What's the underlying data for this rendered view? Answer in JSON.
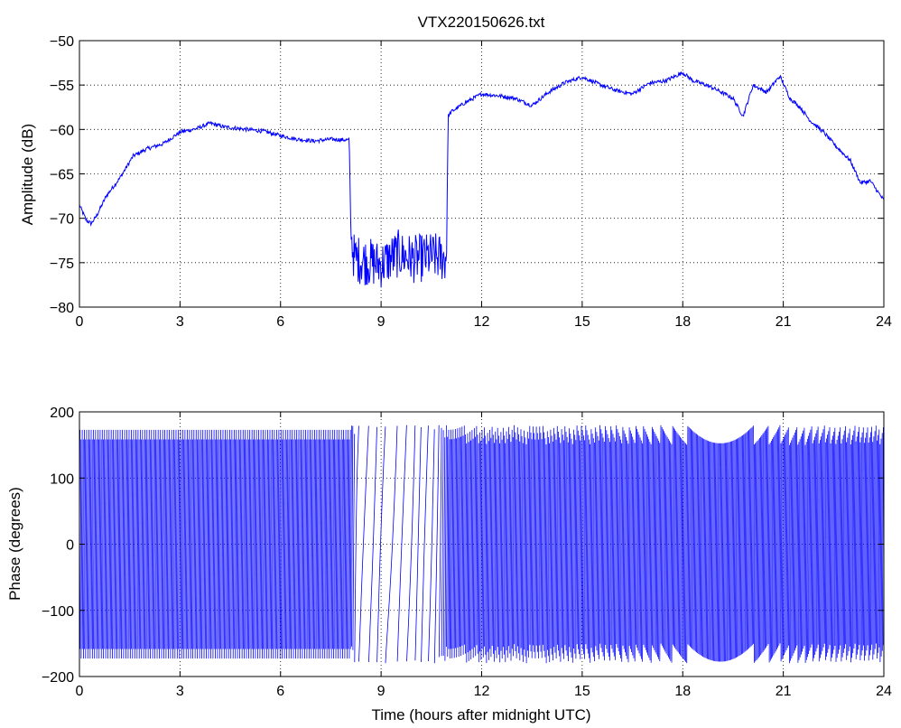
{
  "chart_data": [
    {
      "type": "line",
      "title": "VTX220150626.txt",
      "xlabel": "",
      "ylabel": "Amplitude (dB)",
      "xlim": [
        0,
        24
      ],
      "ylim": [
        -80,
        -50
      ],
      "xticks": [
        "0",
        "3",
        "6",
        "9",
        "12",
        "15",
        "18",
        "21",
        "24"
      ],
      "yticks": [
        "−50",
        "−55",
        "−60",
        "−65",
        "−70",
        "−75",
        "−80"
      ],
      "grid": true,
      "line_color": "#0000ff",
      "series": [
        {
          "x": [
            0,
            0.2,
            0.35,
            0.5,
            0.8,
            1.2,
            1.6,
            2.0,
            2.5,
            3.0,
            3.5,
            3.9,
            4.3,
            5.0,
            5.5,
            6.0,
            6.5,
            7.0,
            7.5,
            8.05,
            8.1,
            8.2,
            8.5,
            9.0,
            9.5,
            10.0,
            10.5,
            10.95,
            11.0,
            11.1,
            11.5,
            12.0,
            12.5,
            13.0,
            13.5,
            14.0,
            14.5,
            15.0,
            15.5,
            16.0,
            16.5,
            17.0,
            17.5,
            18.0,
            18.3,
            18.7,
            19.0,
            19.5,
            19.8,
            20.1,
            20.5,
            20.9,
            21.2,
            21.5,
            21.8,
            22.2,
            22.6,
            23.0,
            23.3,
            23.6,
            24.0
          ],
          "y": [
            -68.5,
            -70.2,
            -70.6,
            -69.8,
            -67.5,
            -65.5,
            -63.0,
            -62.2,
            -61.6,
            -60.3,
            -59.9,
            -59.3,
            -59.7,
            -60.0,
            -60.2,
            -60.7,
            -61.1,
            -61.3,
            -61.1,
            -61.2,
            -72.0,
            -74.5,
            -74.8,
            -75.2,
            -74.0,
            -74.6,
            -74.3,
            -74.5,
            -58.5,
            -58.0,
            -57.0,
            -56.0,
            -56.2,
            -56.5,
            -57.3,
            -55.8,
            -54.7,
            -54.1,
            -54.9,
            -55.6,
            -56.0,
            -54.8,
            -54.5,
            -53.6,
            -54.5,
            -55.0,
            -55.5,
            -56.5,
            -58.5,
            -55.0,
            -55.8,
            -54.0,
            -56.5,
            -57.5,
            -59.0,
            -60.3,
            -62.0,
            -63.5,
            -66.0,
            -65.8,
            -68.0
          ]
        }
      ]
    },
    {
      "type": "line",
      "title": "",
      "xlabel": "Time (hours after midnight UTC)",
      "ylabel": "Phase (degrees)",
      "xlim": [
        0,
        24
      ],
      "ylim": [
        -200,
        200
      ],
      "xticks": [
        "0",
        "3",
        "6",
        "9",
        "12",
        "15",
        "18",
        "21",
        "24"
      ],
      "yticks": [
        "200",
        "100",
        "0",
        "−100",
        "−200"
      ],
      "grid": true,
      "line_color": "#0000ff",
      "phase_wrap": [
        -180,
        180
      ],
      "series": [
        {
          "x": [
            0,
            8.1,
            8.3,
            8.6,
            8.9,
            9.2,
            9.5,
            9.8,
            10.1,
            10.4,
            10.7,
            11.0,
            24.0
          ],
          "rate_cycles_per_hour": [
            30,
            30,
            4,
            3,
            5,
            2,
            4,
            3,
            6,
            4,
            8,
            30,
            32
          ]
        }
      ]
    }
  ]
}
